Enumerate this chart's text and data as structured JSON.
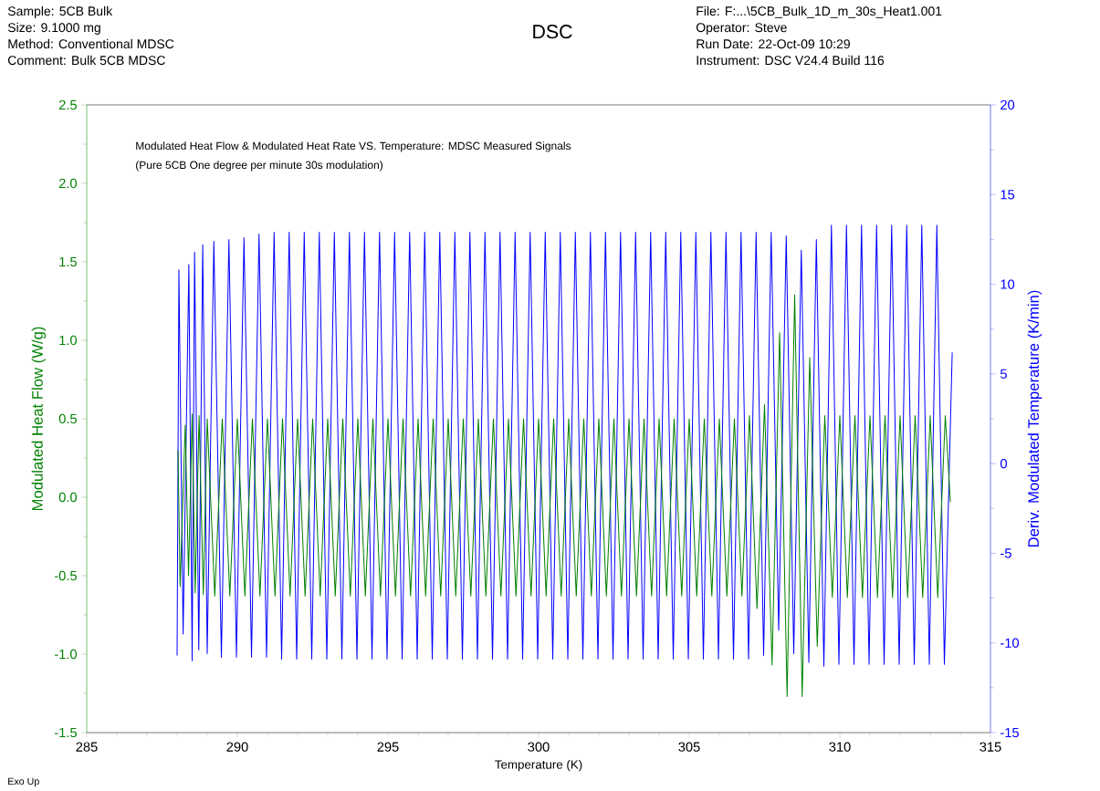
{
  "chart_data": {
    "type": "line",
    "title": "DSC",
    "annotations": [
      "Sample: 5CB Bulk",
      "Size:   9.1000 mg",
      "Method: Conventional MDSC",
      "Comment: Bulk 5CB MDSC",
      "File: F:...\\5CB_Bulk_1D_m_30s_Heat1.001",
      "Operator: Steve",
      "Run Date: 22-Oct-09 10:29",
      "Instrument: DSC V24.4 Build 116",
      "Modulated Heat Flow & Modulated Heat Rate VS. Temperature: MDSC Measured Signals",
      "(Pure 5CB One degree per minute 30s modulation)",
      "Exo Up"
    ],
    "xlabel": "Temperature (K)",
    "ylabel": "Modulated Heat Flow (W/g)",
    "y2label": "Deriv. Modulated Temperature (K/min)",
    "xlim": [
      285,
      315
    ],
    "xticks": [
      285,
      290,
      295,
      300,
      305,
      310,
      315
    ],
    "ylim": [
      -1.5,
      2.5
    ],
    "yticks": [
      -1.5,
      {
        "value": -1,
        "label": "-1.0"
      },
      -0.5,
      {
        "value": 0,
        "label": "0.0"
      },
      0.5,
      {
        "value": 1,
        "label": "1.0"
      },
      1.5,
      {
        "value": 2,
        "label": "2.0"
      },
      2.5
    ],
    "y2lim": [
      -15,
      20
    ],
    "y2ticks": [
      -15,
      -10,
      -5,
      0,
      5,
      10,
      15,
      20
    ],
    "series": [
      {
        "color": "#008000",
        "x": [
          288.03,
          288.1,
          288.27,
          288.38,
          288.5,
          288.6,
          288.73,
          288.87,
          289.0,
          289.25,
          289.5,
          289.75,
          290.0,
          290.25,
          290.5,
          290.75,
          291.0,
          291.25,
          291.5,
          291.75,
          292.0,
          292.25,
          292.5,
          292.75,
          293.0,
          293.25,
          293.5,
          293.75,
          294.0,
          294.25,
          294.5,
          294.75,
          295.0,
          295.25,
          295.5,
          295.75,
          296.0,
          296.25,
          296.5,
          296.75,
          297.0,
          297.25,
          297.5,
          297.75,
          298.0,
          298.25,
          298.5,
          298.75,
          299.0,
          299.25,
          299.5,
          299.75,
          300.0,
          300.25,
          300.5,
          300.75,
          301.0,
          301.25,
          301.5,
          301.75,
          302.0,
          302.25,
          302.5,
          302.75,
          303.0,
          303.25,
          303.5,
          303.75,
          304.0,
          304.25,
          304.5,
          304.75,
          305.0,
          305.25,
          305.5,
          305.75,
          306.0,
          306.25,
          306.5,
          306.75,
          307.0,
          307.25,
          307.5,
          307.75,
          308.0,
          308.25,
          308.5,
          308.75,
          309.0,
          309.25,
          309.5,
          309.75,
          310.0,
          310.25,
          310.5,
          310.75,
          311.0,
          311.25,
          311.5,
          311.75,
          312.0,
          312.25,
          312.5,
          312.75,
          313.0,
          313.25,
          313.5,
          313.67
        ],
        "values": [
          0.3,
          -0.57,
          0.46,
          -0.5,
          0.53,
          -0.61,
          0.52,
          -0.62,
          0.5,
          -0.63,
          0.5,
          -0.63,
          0.5,
          -0.63,
          0.5,
          -0.63,
          0.5,
          -0.63,
          0.5,
          -0.63,
          0.5,
          -0.63,
          0.5,
          -0.63,
          0.5,
          -0.63,
          0.5,
          -0.63,
          0.5,
          -0.63,
          0.5,
          -0.63,
          0.5,
          -0.63,
          0.5,
          -0.63,
          0.5,
          -0.63,
          0.5,
          -0.63,
          0.5,
          -0.63,
          0.5,
          -0.63,
          0.5,
          -0.63,
          0.5,
          -0.63,
          0.5,
          -0.63,
          0.5,
          -0.63,
          0.5,
          -0.63,
          0.5,
          -0.63,
          0.5,
          -0.63,
          0.5,
          -0.63,
          0.5,
          -0.63,
          0.5,
          -0.63,
          0.5,
          -0.63,
          0.5,
          -0.63,
          0.5,
          -0.63,
          0.5,
          -0.63,
          0.5,
          -0.63,
          0.5,
          -0.63,
          0.5,
          -0.63,
          0.5,
          -0.63,
          0.52,
          -0.71,
          0.59,
          -1.07,
          1.05,
          -1.27,
          1.29,
          -1.27,
          0.89,
          -0.95,
          0.52,
          -0.64,
          0.52,
          -0.64,
          0.52,
          -0.64,
          0.52,
          -0.64,
          0.52,
          -0.64,
          0.52,
          -0.64,
          0.52,
          -0.64,
          0.52,
          -0.64,
          0.52,
          -0.03
        ]
      },
      {
        "color": "#0000ff",
        "axis": "y2",
        "x": [
          288.0,
          288.06,
          288.2,
          288.39,
          288.5,
          288.58,
          288.72,
          288.85,
          289.0,
          289.22,
          289.47,
          289.72,
          289.97,
          290.22,
          290.47,
          290.72,
          290.97,
          291.22,
          291.47,
          291.72,
          291.97,
          292.22,
          292.47,
          292.72,
          292.97,
          293.22,
          293.47,
          293.72,
          293.97,
          294.22,
          294.47,
          294.72,
          294.97,
          295.22,
          295.47,
          295.72,
          295.97,
          296.22,
          296.47,
          296.72,
          296.97,
          297.22,
          297.47,
          297.72,
          297.97,
          298.22,
          298.47,
          298.72,
          298.97,
          299.22,
          299.47,
          299.72,
          299.97,
          300.22,
          300.47,
          300.72,
          300.97,
          301.22,
          301.47,
          301.72,
          301.97,
          302.22,
          302.47,
          302.72,
          302.97,
          303.22,
          303.47,
          303.72,
          303.97,
          304.22,
          304.47,
          304.72,
          304.97,
          305.22,
          305.47,
          305.72,
          305.97,
          306.22,
          306.47,
          306.72,
          306.97,
          307.22,
          307.47,
          307.72,
          307.97,
          308.22,
          308.47,
          308.72,
          308.97,
          309.22,
          309.47,
          309.72,
          309.97,
          310.22,
          310.47,
          310.72,
          310.97,
          311.22,
          311.47,
          311.72,
          311.97,
          312.22,
          312.47,
          312.72,
          312.97,
          313.22,
          313.47,
          313.73
        ],
        "values": [
          -10.7,
          10.8,
          -9.5,
          11.1,
          -11.0,
          11.8,
          -10.4,
          12.2,
          -10.6,
          12.4,
          -10.8,
          12.5,
          -10.8,
          12.6,
          -10.8,
          12.8,
          -10.8,
          12.9,
          -10.9,
          12.9,
          -10.9,
          12.9,
          -10.9,
          12.9,
          -10.9,
          12.9,
          -10.9,
          12.9,
          -10.9,
          12.9,
          -10.9,
          12.9,
          -10.9,
          12.9,
          -10.9,
          12.9,
          -10.9,
          12.9,
          -10.9,
          12.9,
          -10.9,
          12.9,
          -10.9,
          12.9,
          -10.9,
          12.9,
          -10.9,
          12.9,
          -10.9,
          12.9,
          -10.9,
          12.9,
          -10.9,
          12.9,
          -10.9,
          12.9,
          -10.9,
          12.9,
          -10.9,
          12.9,
          -10.9,
          12.9,
          -10.9,
          12.9,
          -10.9,
          12.9,
          -10.9,
          12.9,
          -10.9,
          12.9,
          -10.9,
          12.9,
          -10.9,
          12.9,
          -10.9,
          12.9,
          -10.9,
          12.9,
          -10.9,
          12.9,
          -10.9,
          12.9,
          -10.7,
          12.9,
          -9.3,
          12.7,
          -10.6,
          11.9,
          -11.1,
          12.5,
          -11.3,
          13.3,
          -11.2,
          13.3,
          -11.2,
          13.3,
          -11.2,
          13.3,
          -11.2,
          13.3,
          -11.2,
          13.3,
          -11.2,
          13.3,
          -11.2,
          13.3,
          -11.2,
          6.2
        ]
      }
    ]
  }
}
